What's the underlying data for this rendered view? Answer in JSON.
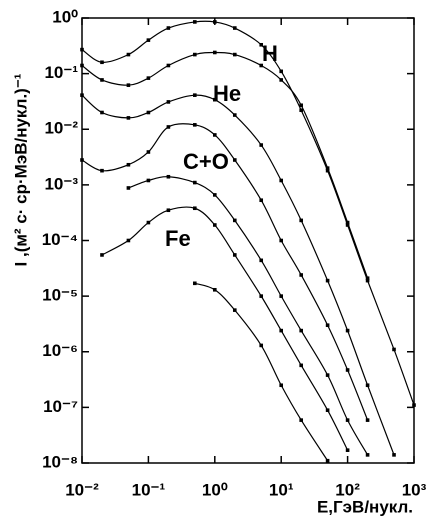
{
  "chart_data": {
    "type": "line",
    "xlabel": "E,ГэВ/нукл.",
    "ylabel": "I ,(м² с· ср·МэВ/нукл.)⁻¹",
    "xlog": true,
    "ylog": true,
    "xlim": [
      0.01,
      1000
    ],
    "ylim": [
      1e-08,
      1
    ],
    "xticks": [
      {
        "value": 0.01,
        "label": "10⁻²"
      },
      {
        "value": 0.1,
        "label": "10⁻¹"
      },
      {
        "value": 1,
        "label": "10⁰"
      },
      {
        "value": 10,
        "label": "10¹"
      },
      {
        "value": 100,
        "label": "10²"
      },
      {
        "value": 1000,
        "label": "10³"
      }
    ],
    "yticks": [
      {
        "value": 1,
        "label": "10⁰"
      },
      {
        "value": 0.1,
        "label": "10⁻¹"
      },
      {
        "value": 0.01,
        "label": "10⁻²"
      },
      {
        "value": 0.001,
        "label": "10⁻³"
      },
      {
        "value": 0.0001,
        "label": "10⁻⁴"
      },
      {
        "value": 1e-05,
        "label": "10⁻⁵"
      },
      {
        "value": 1e-06,
        "label": "10⁻⁶"
      },
      {
        "value": 1e-07,
        "label": "10⁻⁷"
      },
      {
        "value": 1e-08,
        "label": "10⁻⁸"
      }
    ],
    "color": "#000000",
    "x": [
      0.01,
      0.02,
      0.05,
      0.1,
      0.2,
      0.5,
      1,
      2,
      5,
      10,
      20,
      50,
      100,
      200,
      500,
      1000
    ],
    "series": [
      {
        "values": [
          0.27,
          0.16,
          0.22,
          0.4,
          0.66,
          0.85,
          0.85,
          0.66,
          0.33,
          0.11,
          0.022,
          0.0018,
          0.00019,
          1.9e-05,
          1.1e-06,
          1.1e-07
        ]
      },
      {
        "name": "H",
        "values": [
          0.14,
          0.077,
          0.062,
          0.083,
          0.14,
          0.22,
          0.24,
          0.22,
          0.14,
          0.077,
          0.027,
          0.002,
          0.00021,
          2.1e-05,
          null,
          null
        ]
      },
      {
        "name": "He",
        "values": [
          0.041,
          0.02,
          0.016,
          0.02,
          0.031,
          0.041,
          0.034,
          0.018,
          0.0052,
          0.0012,
          0.00023,
          1.9e-05,
          2.4e-06,
          2.5e-07,
          1.4e-08,
          null
        ]
      },
      {
        "name": "C+O",
        "values": [
          0.0028,
          0.0018,
          0.0023,
          0.0039,
          0.011,
          0.012,
          0.0079,
          0.0028,
          0.00053,
          0.0001,
          2.4e-05,
          3e-06,
          4.7e-07,
          5.9e-08,
          null,
          null
        ]
      },
      {
        "values": [
          null,
          null,
          0.00088,
          0.0012,
          0.0014,
          0.0011,
          0.00066,
          0.00023,
          4.4e-05,
          1e-05,
          2.4e-06,
          3.8e-07,
          5.9e-08,
          1.4e-08,
          null,
          null
        ]
      },
      {
        "name": "Fe",
        "values": [
          null,
          5.5e-05,
          0.0001,
          0.00021,
          0.00035,
          0.00038,
          0.00019,
          5.5e-05,
          1e-05,
          2.4e-06,
          5.7e-07,
          8.9e-08,
          1.7e-08,
          null,
          null,
          null
        ]
      },
      {
        "values": [
          null,
          null,
          null,
          null,
          null,
          1.7e-05,
          1.3e-05,
          5.6e-06,
          1.3e-06,
          2.5e-07,
          5.9e-08,
          1.1e-08,
          null,
          null,
          null,
          null
        ]
      }
    ]
  }
}
